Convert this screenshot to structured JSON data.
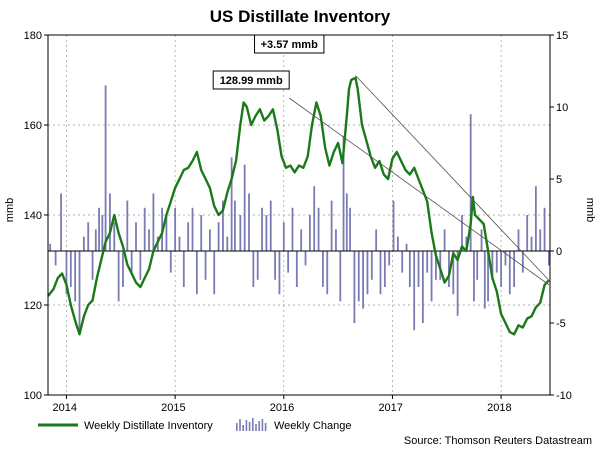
{
  "chart_data": {
    "type": "line",
    "title": "US Distillate Inventory",
    "ylabel_left": "mmb",
    "ylabel_right": "mmb",
    "ylim_left": [
      100,
      180
    ],
    "ylim_right": [
      -10,
      15
    ],
    "yticks_left": [
      100,
      120,
      140,
      160,
      180
    ],
    "yticks_right": [
      -10,
      -5,
      0,
      5,
      10,
      15
    ],
    "xlim": [
      2013.83,
      2018.45
    ],
    "xticks": [
      {
        "label": "2014",
        "x": 2014.0
      },
      {
        "label": "2015",
        "x": 2015.0
      },
      {
        "label": "2016",
        "x": 2016.0
      },
      {
        "label": "2017",
        "x": 2017.0
      },
      {
        "label": "2018",
        "x": 2018.0
      }
    ],
    "grid": true,
    "legend_placement": "bottom-left",
    "colors": {
      "inventory": "#1a7a1a",
      "change": "#7b7bb4",
      "grid": "#999999"
    },
    "series": [
      {
        "name": "Weekly Distillate Inventory",
        "axis": "left",
        "kind": "line",
        "points": [
          [
            2013.83,
            122.0
          ],
          [
            2013.88,
            123.5
          ],
          [
            2013.92,
            126.0
          ],
          [
            2013.96,
            127.0
          ],
          [
            2014.0,
            124.5
          ],
          [
            2014.04,
            120.0
          ],
          [
            2014.08,
            116.5
          ],
          [
            2014.12,
            113.5
          ],
          [
            2014.16,
            117.5
          ],
          [
            2014.2,
            120.0
          ],
          [
            2014.24,
            121.0
          ],
          [
            2014.28,
            126.0
          ],
          [
            2014.32,
            130.0
          ],
          [
            2014.36,
            134.0
          ],
          [
            2014.4,
            136.0
          ],
          [
            2014.44,
            140.0
          ],
          [
            2014.48,
            136.0
          ],
          [
            2014.52,
            133.0
          ],
          [
            2014.56,
            129.0
          ],
          [
            2014.6,
            127.0
          ],
          [
            2014.64,
            125.0
          ],
          [
            2014.68,
            124.0
          ],
          [
            2014.72,
            126.0
          ],
          [
            2014.76,
            128.0
          ],
          [
            2014.8,
            132.0
          ],
          [
            2014.84,
            134.0
          ],
          [
            2014.88,
            136.0
          ],
          [
            2014.92,
            140.0
          ],
          [
            2014.96,
            143.0
          ],
          [
            2015.0,
            146.0
          ],
          [
            2015.04,
            148.0
          ],
          [
            2015.08,
            150.0
          ],
          [
            2015.12,
            150.5
          ],
          [
            2015.16,
            152.0
          ],
          [
            2015.2,
            154.0
          ],
          [
            2015.24,
            150.0
          ],
          [
            2015.28,
            148.0
          ],
          [
            2015.32,
            146.0
          ],
          [
            2015.36,
            142.0
          ],
          [
            2015.4,
            140.0
          ],
          [
            2015.44,
            141.0
          ],
          [
            2015.48,
            145.0
          ],
          [
            2015.52,
            148.0
          ],
          [
            2015.56,
            152.0
          ],
          [
            2015.6,
            160.0
          ],
          [
            2015.63,
            165.0
          ],
          [
            2015.66,
            164.0
          ],
          [
            2015.7,
            160.0
          ],
          [
            2015.74,
            162.0
          ],
          [
            2015.78,
            163.5
          ],
          [
            2015.82,
            161.0
          ],
          [
            2015.86,
            162.0
          ],
          [
            2015.9,
            163.5
          ],
          [
            2015.94,
            159.0
          ],
          [
            2015.98,
            153.0
          ],
          [
            2016.02,
            150.5
          ],
          [
            2016.06,
            151.0
          ],
          [
            2016.1,
            149.5
          ],
          [
            2016.14,
            151.0
          ],
          [
            2016.18,
            150.5
          ],
          [
            2016.22,
            153.0
          ],
          [
            2016.26,
            160.0
          ],
          [
            2016.3,
            165.0
          ],
          [
            2016.34,
            162.0
          ],
          [
            2016.38,
            155.0
          ],
          [
            2016.42,
            151.0
          ],
          [
            2016.46,
            154.0
          ],
          [
            2016.5,
            156.0
          ],
          [
            2016.54,
            151.5
          ],
          [
            2016.58,
            162.0
          ],
          [
            2016.6,
            168.0
          ],
          [
            2016.62,
            170.0
          ],
          [
            2016.66,
            170.5
          ],
          [
            2016.68,
            168.0
          ],
          [
            2016.72,
            160.0
          ],
          [
            2016.76,
            156.5
          ],
          [
            2016.8,
            153.0
          ],
          [
            2016.84,
            150.5
          ],
          [
            2016.88,
            152.0
          ],
          [
            2016.92,
            149.0
          ],
          [
            2016.96,
            148.0
          ],
          [
            2017.0,
            152.5
          ],
          [
            2017.04,
            154.0
          ],
          [
            2017.08,
            152.0
          ],
          [
            2017.12,
            150.0
          ],
          [
            2017.16,
            149.0
          ],
          [
            2017.2,
            150.5
          ],
          [
            2017.24,
            148.0
          ],
          [
            2017.28,
            145.5
          ],
          [
            2017.32,
            143.0
          ],
          [
            2017.36,
            136.0
          ],
          [
            2017.4,
            131.0
          ],
          [
            2017.44,
            128.0
          ],
          [
            2017.48,
            125.0
          ],
          [
            2017.52,
            126.5
          ],
          [
            2017.56,
            131.5
          ],
          [
            2017.6,
            130.0
          ],
          [
            2017.64,
            133.0
          ],
          [
            2017.68,
            132.0
          ],
          [
            2017.72,
            138.0
          ],
          [
            2017.74,
            144.0
          ],
          [
            2017.76,
            140.0
          ],
          [
            2017.8,
            139.0
          ],
          [
            2017.84,
            138.0
          ],
          [
            2017.88,
            132.0
          ],
          [
            2017.92,
            126.0
          ],
          [
            2017.96,
            123.0
          ],
          [
            2018.0,
            118.0
          ],
          [
            2018.04,
            116.0
          ],
          [
            2018.08,
            114.0
          ],
          [
            2018.12,
            113.5
          ],
          [
            2018.16,
            115.5
          ],
          [
            2018.2,
            115.0
          ],
          [
            2018.24,
            117.0
          ],
          [
            2018.28,
            117.5
          ],
          [
            2018.32,
            119.5
          ],
          [
            2018.36,
            120.5
          ],
          [
            2018.4,
            124.5
          ],
          [
            2018.44,
            125.5
          ]
        ]
      },
      {
        "name": "Weekly Change",
        "axis": "right",
        "kind": "bar",
        "points": [
          [
            2013.85,
            0.5
          ],
          [
            2013.9,
            -1.0
          ],
          [
            2013.95,
            4.0
          ],
          [
            2014.0,
            -3.0
          ],
          [
            2014.04,
            -2.5
          ],
          [
            2014.08,
            -3.5
          ],
          [
            2014.12,
            -5.5
          ],
          [
            2014.16,
            1.0
          ],
          [
            2014.2,
            2.0
          ],
          [
            2014.24,
            -2.0
          ],
          [
            2014.27,
            1.5
          ],
          [
            2014.3,
            3.0
          ],
          [
            2014.33,
            2.5
          ],
          [
            2014.36,
            11.5
          ],
          [
            2014.4,
            4.0
          ],
          [
            2014.44,
            2.0
          ],
          [
            2014.48,
            -3.5
          ],
          [
            2014.52,
            -2.5
          ],
          [
            2014.56,
            3.5
          ],
          [
            2014.6,
            -1.5
          ],
          [
            2014.64,
            2.0
          ],
          [
            2014.68,
            -2.0
          ],
          [
            2014.72,
            3.0
          ],
          [
            2014.76,
            1.5
          ],
          [
            2014.8,
            4.0
          ],
          [
            2014.84,
            1.0
          ],
          [
            2014.88,
            3.0
          ],
          [
            2014.92,
            2.5
          ],
          [
            2014.96,
            -1.5
          ],
          [
            2015.0,
            3.0
          ],
          [
            2015.04,
            1.0
          ],
          [
            2015.08,
            -2.5
          ],
          [
            2015.12,
            2.0
          ],
          [
            2015.16,
            3.0
          ],
          [
            2015.2,
            -3.0
          ],
          [
            2015.24,
            2.5
          ],
          [
            2015.28,
            -2.0
          ],
          [
            2015.32,
            1.5
          ],
          [
            2015.36,
            -3.0
          ],
          [
            2015.4,
            2.0
          ],
          [
            2015.44,
            3.5
          ],
          [
            2015.48,
            1.0
          ],
          [
            2015.52,
            6.5
          ],
          [
            2015.55,
            3.5
          ],
          [
            2015.6,
            2.5
          ],
          [
            2015.64,
            6.0
          ],
          [
            2015.68,
            4.0
          ],
          [
            2015.72,
            -2.5
          ],
          [
            2015.76,
            -2.0
          ],
          [
            2015.8,
            3.0
          ],
          [
            2015.84,
            2.5
          ],
          [
            2015.88,
            3.5
          ],
          [
            2015.92,
            -2.0
          ],
          [
            2015.96,
            -3.0
          ],
          [
            2016.0,
            2.0
          ],
          [
            2016.04,
            -1.5
          ],
          [
            2016.08,
            3.0
          ],
          [
            2016.12,
            -2.5
          ],
          [
            2016.16,
            1.5
          ],
          [
            2016.2,
            -1.0
          ],
          [
            2016.24,
            2.5
          ],
          [
            2016.28,
            4.5
          ],
          [
            2016.32,
            3.0
          ],
          [
            2016.36,
            -2.5
          ],
          [
            2016.4,
            -3.0
          ],
          [
            2016.44,
            3.5
          ],
          [
            2016.48,
            1.5
          ],
          [
            2016.52,
            -3.5
          ],
          [
            2016.55,
            8.0
          ],
          [
            2016.58,
            4.0
          ],
          [
            2016.61,
            3.0
          ],
          [
            2016.65,
            -5.0
          ],
          [
            2016.69,
            -3.5
          ],
          [
            2016.73,
            -4.0
          ],
          [
            2016.77,
            -3.0
          ],
          [
            2016.81,
            -2.0
          ],
          [
            2016.85,
            1.5
          ],
          [
            2016.89,
            -3.0
          ],
          [
            2016.93,
            -2.5
          ],
          [
            2016.97,
            -1.0
          ],
          [
            2017.01,
            3.5
          ],
          [
            2017.05,
            1.0
          ],
          [
            2017.09,
            -1.5
          ],
          [
            2017.13,
            0.5
          ],
          [
            2017.16,
            -2.5
          ],
          [
            2017.2,
            -5.5
          ],
          [
            2017.24,
            -2.5
          ],
          [
            2017.28,
            -5.0
          ],
          [
            2017.32,
            -1.5
          ],
          [
            2017.36,
            -3.5
          ],
          [
            2017.4,
            -2.0
          ],
          [
            2017.44,
            -2.0
          ],
          [
            2017.48,
            1.5
          ],
          [
            2017.52,
            -2.5
          ],
          [
            2017.56,
            -3.0
          ],
          [
            2017.6,
            -4.5
          ],
          [
            2017.64,
            2.5
          ],
          [
            2017.68,
            1.0
          ],
          [
            2017.72,
            9.5
          ],
          [
            2017.75,
            -3.5
          ],
          [
            2017.78,
            -2.0
          ],
          [
            2017.82,
            1.5
          ],
          [
            2017.85,
            -4.0
          ],
          [
            2017.88,
            -3.5
          ],
          [
            2017.92,
            -2.0
          ],
          [
            2017.96,
            -1.5
          ],
          [
            2018.0,
            -2.5
          ],
          [
            2018.04,
            -1.0
          ],
          [
            2018.08,
            -3.0
          ],
          [
            2018.12,
            -2.5
          ],
          [
            2018.16,
            1.5
          ],
          [
            2018.2,
            -1.5
          ],
          [
            2018.24,
            2.5
          ],
          [
            2018.28,
            1.0
          ],
          [
            2018.32,
            4.5
          ],
          [
            2018.36,
            1.5
          ],
          [
            2018.4,
            3.0
          ],
          [
            2018.44,
            -1.0
          ]
        ]
      }
    ],
    "trendlines": [
      {
        "axis": "left",
        "from": [
          2016.66,
          171.0
        ],
        "to": [
          2018.44,
          125.5
        ]
      },
      {
        "axis": "left",
        "from": [
          2016.05,
          166.0
        ],
        "to": [
          2018.44,
          124.5
        ]
      }
    ],
    "annotations": [
      {
        "text": "+3.57 mmb",
        "x": 2016.05,
        "y": 178.0
      },
      {
        "text": "128.99 mmb",
        "x": 2015.7,
        "y": 170.0
      }
    ],
    "legend": [
      {
        "label": "Weekly Distillate Inventory",
        "kind": "line"
      },
      {
        "label": "Weekly Change",
        "kind": "bar"
      }
    ],
    "source": "Source: Thomson Reuters Datastream"
  }
}
